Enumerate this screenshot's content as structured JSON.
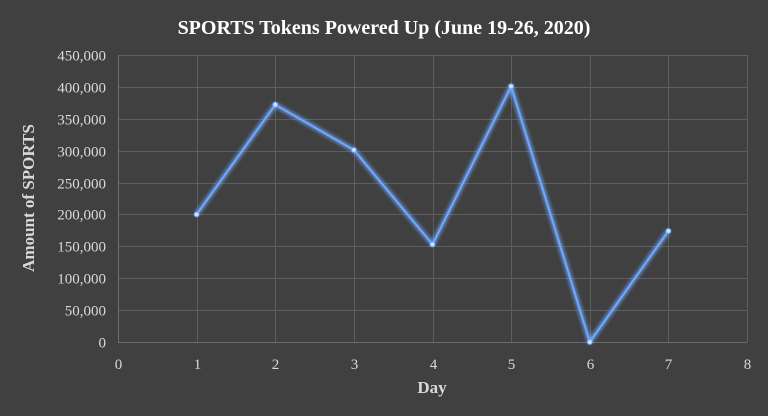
{
  "chart_data": {
    "type": "scatter",
    "title": "SPORTS  Tokens Powered Up (June 19-26, 2020)",
    "xlabel": "Day",
    "ylabel": "Amount of SPORTS",
    "xlim": [
      0,
      8
    ],
    "ylim": [
      0,
      450000
    ],
    "x_ticks": [
      0,
      1,
      2,
      3,
      4,
      5,
      6,
      7,
      8
    ],
    "x_tick_labels": [
      "0",
      "1",
      "2",
      "3",
      "4",
      "5",
      "6",
      "7",
      "8"
    ],
    "y_ticks": [
      0,
      50000,
      100000,
      150000,
      200000,
      250000,
      300000,
      350000,
      400000,
      450000
    ],
    "y_tick_labels": [
      "0",
      "50,000",
      "100,000",
      "150,000",
      "200,000",
      "250,000",
      "300,000",
      "350,000",
      "400,000",
      "450,000"
    ],
    "grid": true,
    "line_color": "#6fa8ff",
    "background_color": "#404040",
    "series": [
      {
        "x": [
          1,
          2,
          3,
          4,
          5,
          6,
          7
        ],
        "values": [
          200000,
          372000,
          301000,
          153000,
          401000,
          0,
          174000
        ]
      }
    ]
  }
}
